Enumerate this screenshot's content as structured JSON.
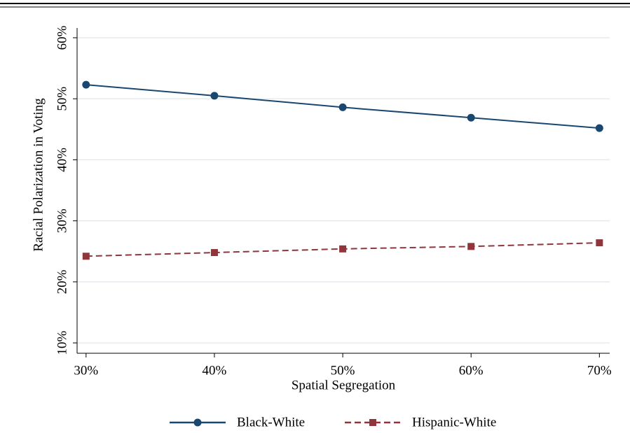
{
  "chart_data": {
    "type": "line",
    "x_label": "Spatial Segregation",
    "y_label": "Racial Polarization in Voting",
    "x": [
      30,
      40,
      50,
      60,
      70
    ],
    "series": [
      {
        "name": "Black-White",
        "color": "#1a476f",
        "marker": "circle",
        "dash": "solid",
        "values": [
          52.3,
          50.5,
          48.6,
          46.9,
          45.2
        ]
      },
      {
        "name": "Hispanic-White",
        "color": "#90353b",
        "marker": "square",
        "dash": "dashed",
        "values": [
          24.2,
          24.8,
          25.4,
          25.8,
          26.4
        ]
      }
    ],
    "xlim": [
      29.3,
      70.8
    ],
    "xticks": [
      {
        "value": 30,
        "label": "30%"
      },
      {
        "value": 40,
        "label": "40%"
      },
      {
        "value": 50,
        "label": "50%"
      },
      {
        "value": 60,
        "label": "60%"
      },
      {
        "value": 70,
        "label": "70%"
      }
    ],
    "ylim": [
      8.3,
      61.6
    ],
    "yticks": [
      {
        "value": 10,
        "label": "10%"
      },
      {
        "value": 20,
        "label": "20%"
      },
      {
        "value": 30,
        "label": "30%"
      },
      {
        "value": 40,
        "label": "40%"
      },
      {
        "value": 50,
        "label": "50%"
      },
      {
        "value": 60,
        "label": "60%"
      }
    ],
    "grid": true,
    "legend": "bottom"
  }
}
